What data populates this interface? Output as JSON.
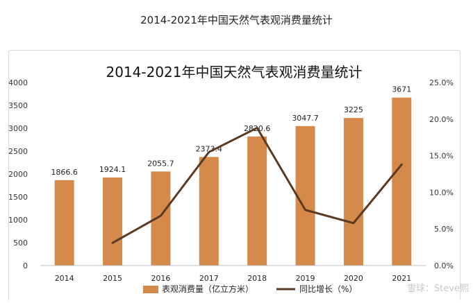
{
  "page": {
    "title": "2014-2021年中国天然气表观消费量统计",
    "watermark": "雪球：Steve熙"
  },
  "chart_data": {
    "type": "bar",
    "title": "2014-2021年中国天然气表观消费量统计",
    "categories": [
      "2014",
      "2015",
      "2016",
      "2017",
      "2018",
      "2019",
      "2020",
      "2021"
    ],
    "series": [
      {
        "name": "表观消费量（亿立方米）",
        "type": "bar",
        "axis": "left",
        "color": "#d58a4c",
        "values": [
          1866.6,
          1924.1,
          2055.7,
          2373.4,
          2820.6,
          3047.7,
          3225,
          3671
        ],
        "labels": [
          "1866.6",
          "1924.1",
          "2055.7",
          "2373.4",
          "2820.6",
          "3047.7",
          "3225",
          "3671"
        ]
      },
      {
        "name": "同比增长（%）",
        "type": "line",
        "axis": "right",
        "color": "#5a3a22",
        "values": [
          null,
          3.1,
          6.8,
          15.5,
          18.8,
          7.6,
          5.8,
          13.8
        ]
      }
    ],
    "y_left": {
      "min": 0,
      "max": 4000,
      "ticks": [
        "0",
        "500",
        "1000",
        "1500",
        "2000",
        "2500",
        "3000",
        "3500",
        "4000"
      ]
    },
    "y_right": {
      "min": 0,
      "max": 25,
      "ticks": [
        "0.0%",
        "5.0%",
        "10.0%",
        "15.0%",
        "20.0%",
        "25.0%"
      ]
    },
    "grid": false,
    "legend": "bottom"
  }
}
